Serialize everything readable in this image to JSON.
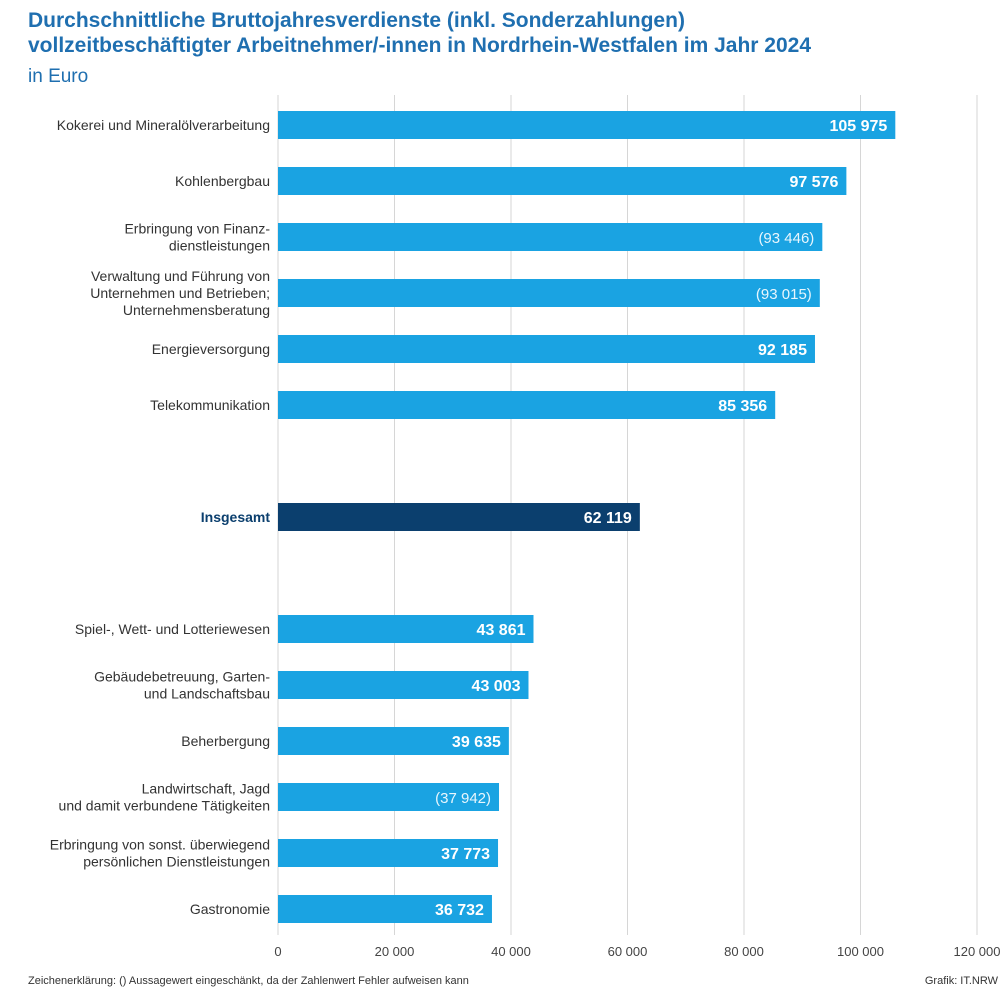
{
  "header": {
    "title_line1": "Durchschnittliche Bruttojahresverdienste (inkl. Sonderzahlungen)",
    "title_line2": "vollzeitbeschäftigter Arbeitnehmer/-innen in Nordrhein-Westfalen im Jahr 2024",
    "subtitle": "in Euro"
  },
  "footer": {
    "note": "Zeichenerklärung: () Aussagewert eingeschänkt, da der Zahlenwert Fehler aufweisen kann",
    "source": "Grafik: IT.NRW"
  },
  "colors": {
    "bar": "#1aa3e2",
    "bar_total": "#0b3f6e",
    "grid": "#d6d6d6",
    "label_total": "#0b3f6e"
  },
  "chart_data": {
    "type": "bar",
    "orientation": "horizontal",
    "title": "Durchschnittliche Bruttojahresverdienste (inkl. Sonderzahlungen) vollzeitbeschäftigter Arbeitnehmer/-innen in Nordrhein-Westfalen im Jahr 2024",
    "unit": "in Euro",
    "xlim": [
      0,
      120000
    ],
    "xticks": [
      0,
      20000,
      40000,
      60000,
      80000,
      100000,
      120000
    ],
    "xtick_labels": [
      "0",
      "20 000",
      "40 000",
      "60 000",
      "80 000",
      "100 000",
      "120 000"
    ],
    "grid": true,
    "bars": [
      {
        "label": [
          "Kokerei und Mineralölverarbeitung"
        ],
        "value": 105975,
        "display": "105 975",
        "limited": false,
        "total": false
      },
      {
        "label": [
          "Kohlenbergbau"
        ],
        "value": 97576,
        "display": "97 576",
        "limited": false,
        "total": false
      },
      {
        "label": [
          "Erbringung von Finanz-",
          "dienstleistungen"
        ],
        "value": 93446,
        "display": "(93 446)",
        "limited": true,
        "total": false
      },
      {
        "label": [
          "Verwaltung und Führung von",
          "Unternehmen und Betrieben;",
          "Unternehmensberatung"
        ],
        "value": 93015,
        "display": "(93 015)",
        "limited": true,
        "total": false
      },
      {
        "label": [
          "Energieversorgung"
        ],
        "value": 92185,
        "display": "92 185",
        "limited": false,
        "total": false
      },
      {
        "label": [
          "Telekommunikation"
        ],
        "value": 85356,
        "display": "85 356",
        "limited": false,
        "total": false
      },
      {
        "label": [
          "Insgesamt"
        ],
        "value": 62119,
        "display": "62 119",
        "limited": false,
        "total": true
      },
      {
        "label": [
          "Spiel-, Wett- und Lotteriewesen"
        ],
        "value": 43861,
        "display": "43 861",
        "limited": false,
        "total": false
      },
      {
        "label": [
          "Gebäudebetreuung, Garten-",
          "und Landschaftsbau"
        ],
        "value": 43003,
        "display": "43 003",
        "limited": false,
        "total": false
      },
      {
        "label": [
          "Beherbergung"
        ],
        "value": 39635,
        "display": "39 635",
        "limited": false,
        "total": false
      },
      {
        "label": [
          "Landwirtschaft, Jagd",
          "und damit verbundene Tätigkeiten"
        ],
        "value": 37942,
        "display": "(37 942)",
        "limited": true,
        "total": false
      },
      {
        "label": [
          "Erbringung von sonst. überwiegend",
          "persönlichen Dienstleistungen"
        ],
        "value": 37773,
        "display": "37 773",
        "limited": false,
        "total": false
      },
      {
        "label": [
          "Gastronomie"
        ],
        "value": 36732,
        "display": "36 732",
        "limited": false,
        "total": false
      }
    ]
  }
}
